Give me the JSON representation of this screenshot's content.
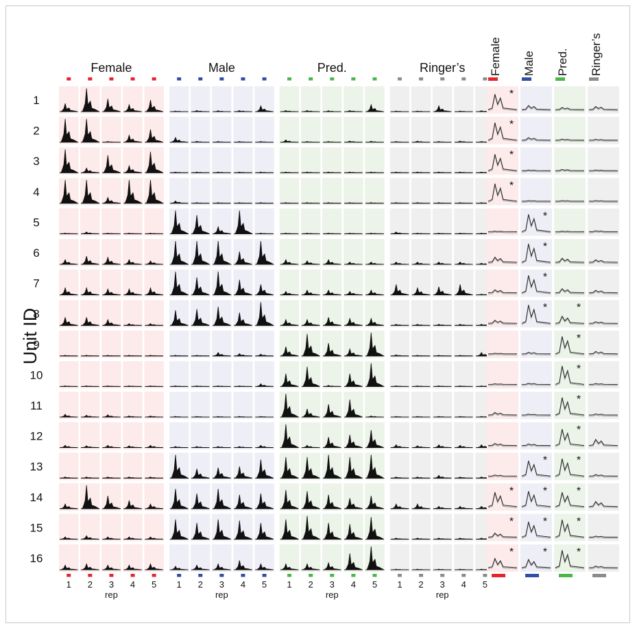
{
  "chart_data": {
    "type": "area",
    "units": [
      "1",
      "2",
      "3",
      "4",
      "5",
      "6",
      "7",
      "8",
      "9",
      "10",
      "11",
      "12",
      "13",
      "14",
      "15",
      "16"
    ],
    "y_axis_label": "Unit ID",
    "groups": [
      {
        "name": "Female",
        "color": "#e8242b",
        "bg": "#fdeaea"
      },
      {
        "name": "Male",
        "color": "#2f4fa2",
        "bg": "#eeeef6"
      },
      {
        "name": "Pred.",
        "color": "#4bb748",
        "bg": "#ecf3e8"
      },
      {
        "name": "Ringer’s",
        "color": "#8c8c8c",
        "bg": "#efefef"
      }
    ],
    "reps": [
      "1",
      "2",
      "3",
      "4",
      "5"
    ],
    "rep_label": "rep",
    "response_peaks": [
      [
        [
          0.35,
          1.0,
          0.55,
          0.3,
          0.5
        ],
        [
          0.03,
          0.05,
          0.04,
          0.05,
          0.25
        ],
        [
          0.05,
          0.05,
          0.04,
          0.05,
          0.3
        ],
        [
          0.03,
          0.03,
          0.25,
          0.03,
          0.04
        ]
      ],
      [
        [
          1.0,
          1.0,
          0.03,
          0.3,
          0.55
        ],
        [
          0.2,
          0.04,
          0.03,
          0.03,
          0.03
        ],
        [
          0.1,
          0.03,
          0.03,
          0.05,
          0.04
        ],
        [
          0.03,
          0.05,
          0.03,
          0.05,
          0.03
        ]
      ],
      [
        [
          1.0,
          0.2,
          0.75,
          0.3,
          0.9
        ],
        [
          0.03,
          0.03,
          0.03,
          0.03,
          0.03
        ],
        [
          0.03,
          0.03,
          0.03,
          0.03,
          0.03
        ],
        [
          0.03,
          0.03,
          0.03,
          0.03,
          0.03
        ]
      ],
      [
        [
          1.0,
          1.0,
          0.25,
          1.0,
          1.0
        ],
        [
          0.1,
          0.03,
          0.03,
          0.03,
          0.03
        ],
        [
          0.03,
          0.03,
          0.03,
          0.03,
          0.03
        ],
        [
          0.03,
          0.03,
          0.03,
          0.03,
          0.03
        ]
      ],
      [
        [
          0.03,
          0.08,
          0.03,
          0.03,
          0.03
        ],
        [
          1.0,
          0.8,
          0.3,
          1.0,
          0.03
        ],
        [
          0.03,
          0.03,
          0.03,
          0.03,
          0.03
        ],
        [
          0.08,
          0.03,
          0.03,
          0.03,
          0.03
        ]
      ],
      [
        [
          0.2,
          0.35,
          0.3,
          0.2,
          0.15
        ],
        [
          1.0,
          1.0,
          1.0,
          0.55,
          1.0
        ],
        [
          0.2,
          0.15,
          0.2,
          0.1,
          0.1
        ],
        [
          0.1,
          0.1,
          0.1,
          0.1,
          0.05
        ]
      ],
      [
        [
          0.3,
          0.3,
          0.25,
          0.25,
          0.3
        ],
        [
          1.0,
          0.75,
          1.0,
          0.65,
          0.45
        ],
        [
          0.15,
          0.2,
          0.2,
          0.15,
          0.2
        ],
        [
          0.45,
          0.3,
          0.35,
          0.45,
          0.03
        ]
      ],
      [
        [
          0.35,
          0.35,
          0.25,
          0.08,
          0.08
        ],
        [
          0.65,
          0.7,
          0.8,
          0.55,
          1.0
        ],
        [
          0.25,
          0.25,
          0.35,
          0.3,
          0.3
        ],
        [
          0.05,
          0.05,
          0.05,
          0.05,
          0.05
        ]
      ],
      [
        [
          0.03,
          0.03,
          0.03,
          0.03,
          0.03
        ],
        [
          0.03,
          0.03,
          0.15,
          0.1,
          0.08
        ],
        [
          0.4,
          0.95,
          0.55,
          0.3,
          1.0
        ],
        [
          0.05,
          0.03,
          0.03,
          0.03,
          0.15
        ]
      ],
      [
        [
          0.03,
          0.03,
          0.03,
          0.03,
          0.03
        ],
        [
          0.03,
          0.03,
          0.03,
          0.03,
          0.12
        ],
        [
          0.55,
          0.85,
          0.05,
          0.55,
          1.0
        ],
        [
          0.03,
          0.03,
          0.03,
          0.03,
          0.03
        ]
      ],
      [
        [
          0.12,
          0.08,
          0.1,
          0.05,
          0.05
        ],
        [
          0.03,
          0.03,
          0.03,
          0.03,
          0.03
        ],
        [
          1.0,
          0.35,
          0.55,
          0.75,
          0.05
        ],
        [
          0.03,
          0.03,
          0.03,
          0.03,
          0.03
        ]
      ],
      [
        [
          0.1,
          0.08,
          0.1,
          0.08,
          0.1
        ],
        [
          0.05,
          0.05,
          0.05,
          0.05,
          0.1
        ],
        [
          1.0,
          0.1,
          0.45,
          0.55,
          0.75
        ],
        [
          0.12,
          0.08,
          0.12,
          0.1,
          0.12
        ]
      ],
      [
        [
          0.05,
          0.05,
          0.05,
          0.05,
          0.05
        ],
        [
          1.0,
          0.4,
          0.45,
          0.5,
          0.8
        ],
        [
          0.9,
          0.9,
          1.0,
          0.9,
          1.0
        ],
        [
          0.05,
          0.05,
          0.12,
          0.05,
          0.05
        ]
      ],
      [
        [
          0.2,
          1.0,
          0.55,
          0.35,
          0.2
        ],
        [
          0.85,
          0.65,
          0.85,
          0.6,
          0.65
        ],
        [
          0.8,
          0.75,
          0.6,
          0.45,
          0.55
        ],
        [
          0.2,
          0.2,
          0.1,
          0.1,
          0.1
        ]
      ],
      [
        [
          0.1,
          0.15,
          0.1,
          0.1,
          0.1
        ],
        [
          0.85,
          0.7,
          0.85,
          0.8,
          0.7
        ],
        [
          0.85,
          1.0,
          0.7,
          0.65,
          0.95
        ],
        [
          0.05,
          0.05,
          0.05,
          0.05,
          0.05
        ]
      ],
      [
        [
          0.2,
          0.25,
          0.2,
          0.2,
          0.25
        ],
        [
          0.15,
          0.2,
          0.25,
          0.4,
          0.25
        ],
        [
          0.25,
          0.25,
          0.3,
          0.7,
          1.0
        ],
        [
          0.03,
          0.03,
          0.03,
          0.03,
          0.03
        ]
      ]
    ],
    "mean_peaks": [
      [
        0.75,
        0.2,
        0.1,
        0.15
      ],
      [
        0.85,
        0.12,
        0.05,
        0.04
      ],
      [
        0.8,
        0.03,
        0.06,
        0.03
      ],
      [
        0.85,
        0.03,
        0.03,
        0.03
      ],
      [
        0.03,
        0.85,
        0.03,
        0.05
      ],
      [
        0.25,
        0.9,
        0.2,
        0.12
      ],
      [
        0.15,
        0.85,
        0.2,
        0.12
      ],
      [
        0.15,
        0.9,
        0.35,
        0.08
      ],
      [
        0.03,
        0.08,
        0.85,
        0.12
      ],
      [
        0.03,
        0.06,
        0.9,
        0.04
      ],
      [
        0.12,
        0.04,
        0.85,
        0.05
      ],
      [
        0.1,
        0.08,
        0.8,
        0.3
      ],
      [
        0.05,
        0.75,
        0.85,
        0.07
      ],
      [
        0.7,
        0.75,
        0.7,
        0.25
      ],
      [
        0.2,
        0.75,
        0.85,
        0.05
      ],
      [
        0.45,
        0.4,
        0.85,
        0.08
      ]
    ],
    "significant": [
      [
        true,
        false,
        false,
        false
      ],
      [
        true,
        false,
        false,
        false
      ],
      [
        true,
        false,
        false,
        false
      ],
      [
        true,
        false,
        false,
        false
      ],
      [
        false,
        true,
        false,
        false
      ],
      [
        false,
        true,
        false,
        false
      ],
      [
        false,
        true,
        false,
        false
      ],
      [
        false,
        true,
        true,
        false
      ],
      [
        false,
        false,
        true,
        false
      ],
      [
        false,
        false,
        true,
        false
      ],
      [
        false,
        false,
        true,
        false
      ],
      [
        false,
        false,
        true,
        false
      ],
      [
        false,
        true,
        true,
        false
      ],
      [
        true,
        true,
        true,
        false
      ],
      [
        true,
        true,
        true,
        false
      ],
      [
        true,
        true,
        true,
        false
      ]
    ],
    "significance_marker": "*"
  }
}
